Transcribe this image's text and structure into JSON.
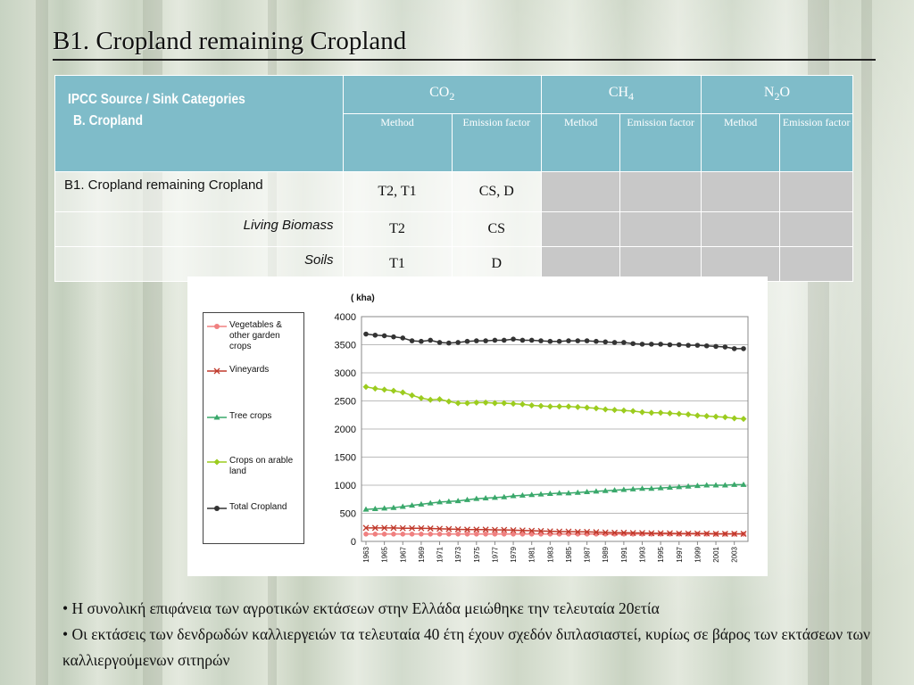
{
  "slide": {
    "title": "B1. Cropland remaining Cropland"
  },
  "table": {
    "category_header_line1": "IPCC Source / Sink Categories",
    "category_header_line2": "B. Cropland",
    "gases": [
      {
        "base": "CO",
        "sub": "2",
        "tail": ""
      },
      {
        "base": "CH",
        "sub": "4",
        "tail": ""
      },
      {
        "base": "N",
        "sub": "2",
        "tail": "O"
      }
    ],
    "sub_headers": [
      "Method",
      "Emission factor",
      "Method",
      "Emission factor",
      "Method",
      "Emission factor"
    ],
    "rows": [
      {
        "label": "B1.  Cropland remaining Cropland",
        "co2_method": "T2, T1",
        "co2_ef": "CS, D"
      },
      {
        "label": "Living Biomass",
        "co2_method": "T2",
        "co2_ef": "CS"
      },
      {
        "label": "Soils",
        "co2_method": "T1",
        "co2_ef": "D"
      }
    ]
  },
  "chart_data": {
    "type": "line",
    "unit_label": "( kha)",
    "ylim": [
      0,
      4000
    ],
    "yticks": [
      0,
      500,
      1000,
      1500,
      2000,
      2500,
      3000,
      3500,
      4000
    ],
    "x": [
      1963,
      1964,
      1965,
      1966,
      1967,
      1968,
      1969,
      1970,
      1971,
      1972,
      1973,
      1974,
      1975,
      1976,
      1977,
      1978,
      1979,
      1980,
      1981,
      1982,
      1983,
      1984,
      1985,
      1986,
      1987,
      1988,
      1989,
      1990,
      1991,
      1992,
      1993,
      1994,
      1995,
      1996,
      1997,
      1998,
      1999,
      2000,
      2001,
      2002,
      2003,
      2004
    ],
    "x_tick_labels": [
      "1963",
      "1965",
      "1967",
      "1969",
      "1971",
      "1973",
      "1975",
      "1977",
      "1979",
      "1981",
      "1983",
      "1985",
      "1987",
      "1989",
      "1991",
      "1993",
      "1995",
      "1997",
      "1999",
      "2001",
      "2003"
    ],
    "grid": "horizontal",
    "legend_position": "left",
    "series": [
      {
        "name": "Vegetables & other garden crops",
        "color": "#f08080",
        "marker": "circle",
        "values": [
          130,
          130,
          130,
          130,
          130,
          130,
          130,
          130,
          130,
          130,
          130,
          130,
          130,
          130,
          130,
          130,
          130,
          130,
          130,
          130,
          130,
          130,
          130,
          130,
          130,
          130,
          130,
          130,
          130,
          130,
          130,
          130,
          130,
          130,
          130,
          130,
          130,
          130,
          130,
          130,
          130,
          130
        ]
      },
      {
        "name": "Vineyards",
        "color": "#c0392b",
        "marker": "x",
        "values": [
          240,
          240,
          240,
          240,
          235,
          235,
          235,
          230,
          225,
          220,
          215,
          210,
          210,
          210,
          205,
          205,
          200,
          195,
          190,
          185,
          180,
          175,
          175,
          170,
          170,
          165,
          160,
          155,
          155,
          150,
          150,
          145,
          145,
          145,
          140,
          140,
          140,
          140,
          135,
          135,
          135,
          135
        ]
      },
      {
        "name": "Tree crops",
        "color": "#3aa86b",
        "marker": "triangle",
        "values": [
          570,
          580,
          590,
          600,
          620,
          640,
          660,
          680,
          700,
          710,
          720,
          740,
          760,
          770,
          780,
          790,
          810,
          820,
          830,
          840,
          850,
          860,
          860,
          870,
          880,
          890,
          900,
          910,
          920,
          930,
          940,
          940,
          950,
          960,
          970,
          980,
          990,
          1000,
          1000,
          1000,
          1010,
          1010
        ]
      },
      {
        "name": "Crops on arable land",
        "color": "#9ccc1f",
        "marker": "diamond",
        "values": [
          2750,
          2720,
          2700,
          2680,
          2650,
          2600,
          2550,
          2520,
          2530,
          2490,
          2460,
          2460,
          2470,
          2470,
          2460,
          2460,
          2450,
          2440,
          2420,
          2410,
          2400,
          2400,
          2400,
          2390,
          2380,
          2370,
          2350,
          2340,
          2330,
          2320,
          2300,
          2290,
          2290,
          2280,
          2270,
          2260,
          2240,
          2230,
          2220,
          2210,
          2190,
          2180
        ]
      },
      {
        "name": "Total Cropland",
        "color": "#333333",
        "marker": "circle",
        "values": [
          3690,
          3670,
          3660,
          3640,
          3620,
          3570,
          3560,
          3580,
          3540,
          3530,
          3540,
          3560,
          3570,
          3570,
          3580,
          3580,
          3600,
          3580,
          3580,
          3570,
          3560,
          3560,
          3570,
          3570,
          3570,
          3560,
          3550,
          3540,
          3540,
          3520,
          3510,
          3510,
          3510,
          3500,
          3500,
          3490,
          3490,
          3480,
          3470,
          3460,
          3430,
          3430
        ]
      }
    ]
  },
  "bullets": [
    "•  Η συνολική επιφάνεια των αγροτικών εκτάσεων στην Ελλάδα μειώθηκε την τελευταία 20ετία",
    "•  Οι εκτάσεις των δενδρωδών καλλιεργειών τα τελευταία 40 έτη έχουν σχεδόν διπλασιαστεί, κυρίως σε βάρος των εκτάσεων των καλλιεργούμενων σιτηρών"
  ]
}
